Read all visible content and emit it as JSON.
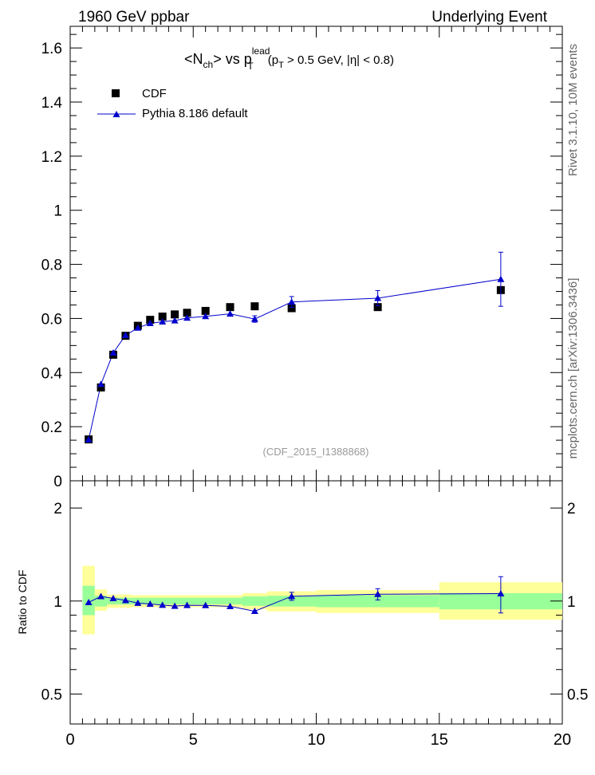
{
  "header": {
    "energy": "1960 GeV ppbar",
    "process": "Underlying Event"
  },
  "side_labels": {
    "top": "Rivet 3.1.10, 10M events",
    "bottom": "mcplots.cern.ch [arXiv:1306.3436]"
  },
  "analysis_tag": "(CDF_2015_I1388868)",
  "title_parts": {
    "lhs": "<N",
    "lhs_sub": "ch",
    "mid": "> vs p",
    "lead_sup": "lead",
    "lead_sub": "T",
    "cut_open": "(p",
    "cut_sub": "T",
    "cut_rest": " > 0.5 GeV, |η| < 0.8)"
  },
  "legend": {
    "data": "CDF",
    "mc": "Pythia 8.186 default"
  },
  "ratio_ylabel": "Ratio to CDF",
  "colors": {
    "mc": "#0000cc",
    "data": "#000000",
    "band_inner": "#99ff99",
    "band_outer": "#ffff99"
  },
  "chart_data": {
    "type": "scatter",
    "xlim": [
      0,
      20
    ],
    "x_ticks": [
      "0",
      "5",
      "10",
      "15",
      "20"
    ],
    "main": {
      "ylim": [
        0,
        1.68
      ],
      "y_ticks": [
        "0",
        "0.2",
        "0.4",
        "0.6",
        "0.8",
        "1",
        "1.2",
        "1.4",
        "1.6"
      ],
      "log": false
    },
    "ratio": {
      "ylim": [
        0.4,
        2.45
      ],
      "y_ticks": [
        "0.5",
        "1",
        "2"
      ],
      "log": true
    },
    "series": [
      {
        "name": "CDF",
        "marker": "square",
        "x": [
          0.75,
          1.25,
          1.75,
          2.25,
          2.75,
          3.25,
          3.75,
          4.25,
          4.75,
          5.5,
          6.5,
          7.5,
          9.0,
          12.5,
          17.5
        ],
        "y": [
          0.153,
          0.345,
          0.466,
          0.536,
          0.573,
          0.595,
          0.607,
          0.615,
          0.621,
          0.628,
          0.642,
          0.645,
          0.638,
          0.642,
          0.705
        ]
      },
      {
        "name": "Pythia 8.186 default",
        "marker": "triangle",
        "x": [
          0.75,
          1.25,
          1.75,
          2.25,
          2.75,
          3.25,
          3.75,
          4.25,
          4.75,
          5.5,
          6.5,
          7.5,
          9.0,
          12.5,
          17.5
        ],
        "y": [
          0.152,
          0.357,
          0.473,
          0.538,
          0.565,
          0.582,
          0.588,
          0.592,
          0.602,
          0.608,
          0.617,
          0.598,
          0.661,
          0.675,
          0.745
        ],
        "y_err": [
          0.002,
          0.004,
          0.004,
          0.004,
          0.004,
          0.004,
          0.004,
          0.004,
          0.004,
          0.005,
          0.006,
          0.012,
          0.02,
          0.028,
          0.1
        ],
        "ratio": [
          0.99,
          1.035,
          1.02,
          1.005,
          0.985,
          0.978,
          0.97,
          0.963,
          0.969,
          0.968,
          0.961,
          0.927,
          1.036,
          1.052,
          1.057
        ],
        "ratio_err": [
          0.01,
          0.012,
          0.01,
          0.008,
          0.008,
          0.008,
          0.008,
          0.008,
          0.008,
          0.008,
          0.009,
          0.019,
          0.031,
          0.044,
          0.142
        ]
      }
    ],
    "bands": [
      {
        "x0": 0.5,
        "x1": 1.0,
        "inner": [
          0.9,
          1.12
        ],
        "outer": [
          0.78,
          1.3
        ]
      },
      {
        "x0": 1.0,
        "x1": 1.5,
        "inner": [
          0.96,
          1.04
        ],
        "outer": [
          0.93,
          1.09
        ]
      },
      {
        "x0": 1.5,
        "x1": 2.0,
        "inner": [
          0.975,
          1.025
        ],
        "outer": [
          0.95,
          1.05
        ]
      },
      {
        "x0": 2.0,
        "x1": 2.5,
        "inner": [
          0.975,
          1.025
        ],
        "outer": [
          0.95,
          1.05
        ]
      },
      {
        "x0": 2.5,
        "x1": 7.0,
        "inner": [
          0.975,
          1.025
        ],
        "outer": [
          0.955,
          1.045
        ]
      },
      {
        "x0": 7.0,
        "x1": 8.0,
        "inner": [
          0.965,
          1.035
        ],
        "outer": [
          0.94,
          1.06
        ]
      },
      {
        "x0": 8.0,
        "x1": 10.0,
        "inner": [
          0.96,
          1.04
        ],
        "outer": [
          0.925,
          1.075
        ]
      },
      {
        "x0": 10.0,
        "x1": 15.0,
        "inner": [
          0.955,
          1.045
        ],
        "outer": [
          0.915,
          1.085
        ]
      },
      {
        "x0": 15.0,
        "x1": 20.0,
        "inner": [
          0.94,
          1.06
        ],
        "outer": [
          0.87,
          1.15
        ]
      }
    ]
  }
}
